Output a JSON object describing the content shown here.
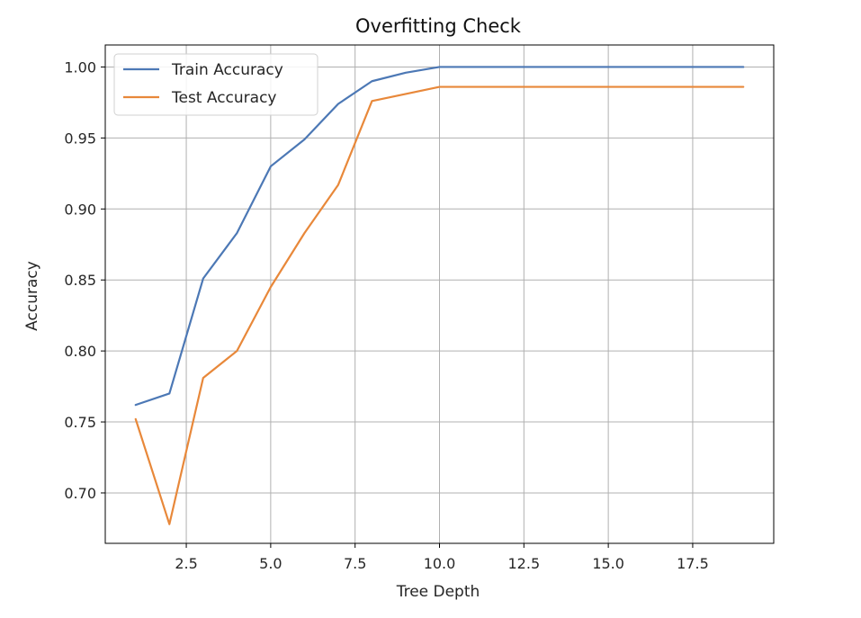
{
  "chart_data": {
    "type": "line",
    "title": "Overfitting Check",
    "xlabel": "Tree Depth",
    "ylabel": "Accuracy",
    "xlim": [
      0.1,
      19.9
    ],
    "ylim": [
      0.6645,
      1.0155
    ],
    "x_ticks": [
      2.5,
      5.0,
      7.5,
      10.0,
      12.5,
      15.0,
      17.5
    ],
    "x_tick_labels": [
      "2.5",
      "5.0",
      "7.5",
      "10.0",
      "12.5",
      "15.0",
      "17.5"
    ],
    "y_ticks": [
      0.7,
      0.75,
      0.8,
      0.85,
      0.9,
      0.95,
      1.0
    ],
    "y_tick_labels": [
      "0.70",
      "0.75",
      "0.80",
      "0.85",
      "0.90",
      "0.95",
      "1.00"
    ],
    "grid": true,
    "legend_position": "top-left",
    "x": [
      1,
      2,
      3,
      4,
      5,
      6,
      7,
      8,
      9,
      10,
      11,
      12,
      13,
      14,
      15,
      16,
      17,
      18,
      19
    ],
    "series": [
      {
        "name": "Train Accuracy",
        "color": "#4c78b5",
        "values": [
          0.762,
          0.77,
          0.851,
          0.883,
          0.93,
          0.949,
          0.974,
          0.99,
          0.996,
          1.0,
          1.0,
          1.0,
          1.0,
          1.0,
          1.0,
          1.0,
          1.0,
          1.0,
          1.0
        ]
      },
      {
        "name": "Test Accuracy",
        "color": "#e8883a",
        "values": [
          0.752,
          0.678,
          0.781,
          0.8,
          0.845,
          0.883,
          0.917,
          0.976,
          0.981,
          0.986,
          0.986,
          0.986,
          0.986,
          0.986,
          0.986,
          0.986,
          0.986,
          0.986,
          0.986
        ]
      }
    ]
  }
}
